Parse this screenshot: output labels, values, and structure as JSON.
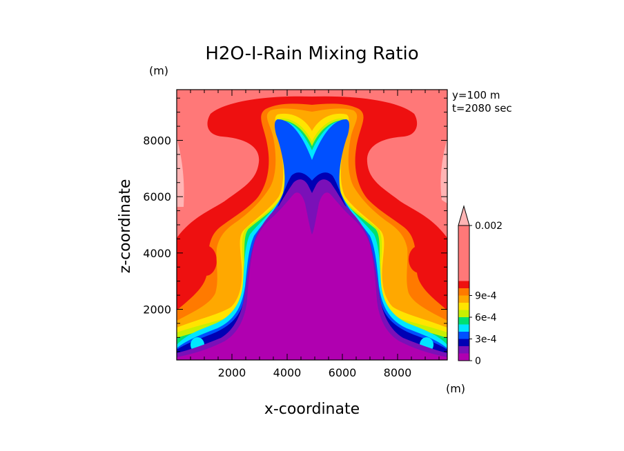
{
  "chart_data": {
    "type": "heatmap",
    "title": "H2O-I-Rain Mixing Ratio",
    "xlabel": "x-coordinate",
    "ylabel": "z-coordinate",
    "x_unit": "(m)",
    "y_unit": "(m)",
    "annotations": [
      "y=100 m",
      "t=2080 sec"
    ],
    "xlim": [
      0,
      9800
    ],
    "ylim": [
      200,
      9800
    ],
    "x_ticks": [
      2000,
      4000,
      6000,
      8000
    ],
    "y_ticks": [
      2000,
      4000,
      6000,
      8000
    ],
    "x_tick_labels": [
      "2000",
      "4000",
      "6000",
      "8000"
    ],
    "y_tick_labels": [
      "2000",
      "4000",
      "6000",
      "8000"
    ],
    "colorbar": {
      "levels": [
        0,
        0.0001,
        0.0002,
        0.0003,
        0.0004,
        0.0005,
        0.0006,
        0.0007,
        0.0008,
        0.0009,
        0.001,
        0.002
      ],
      "tick_labels": [
        "0",
        "3e-4",
        "6e-4",
        "9e-4",
        "0.002"
      ],
      "tick_values": [
        0,
        0.0003,
        0.0006,
        0.0009,
        0.002
      ],
      "colors": [
        "#b000b0",
        "#7a10b8",
        "#0000b4",
        "#0050ff",
        "#00e6ff",
        "#00e070",
        "#c8f000",
        "#ffe400",
        "#ffa800",
        "#ff7a00",
        "#ee1010",
        "#ff7878"
      ],
      "over_color": "#ffb4b4",
      "extend": "max"
    }
  }
}
